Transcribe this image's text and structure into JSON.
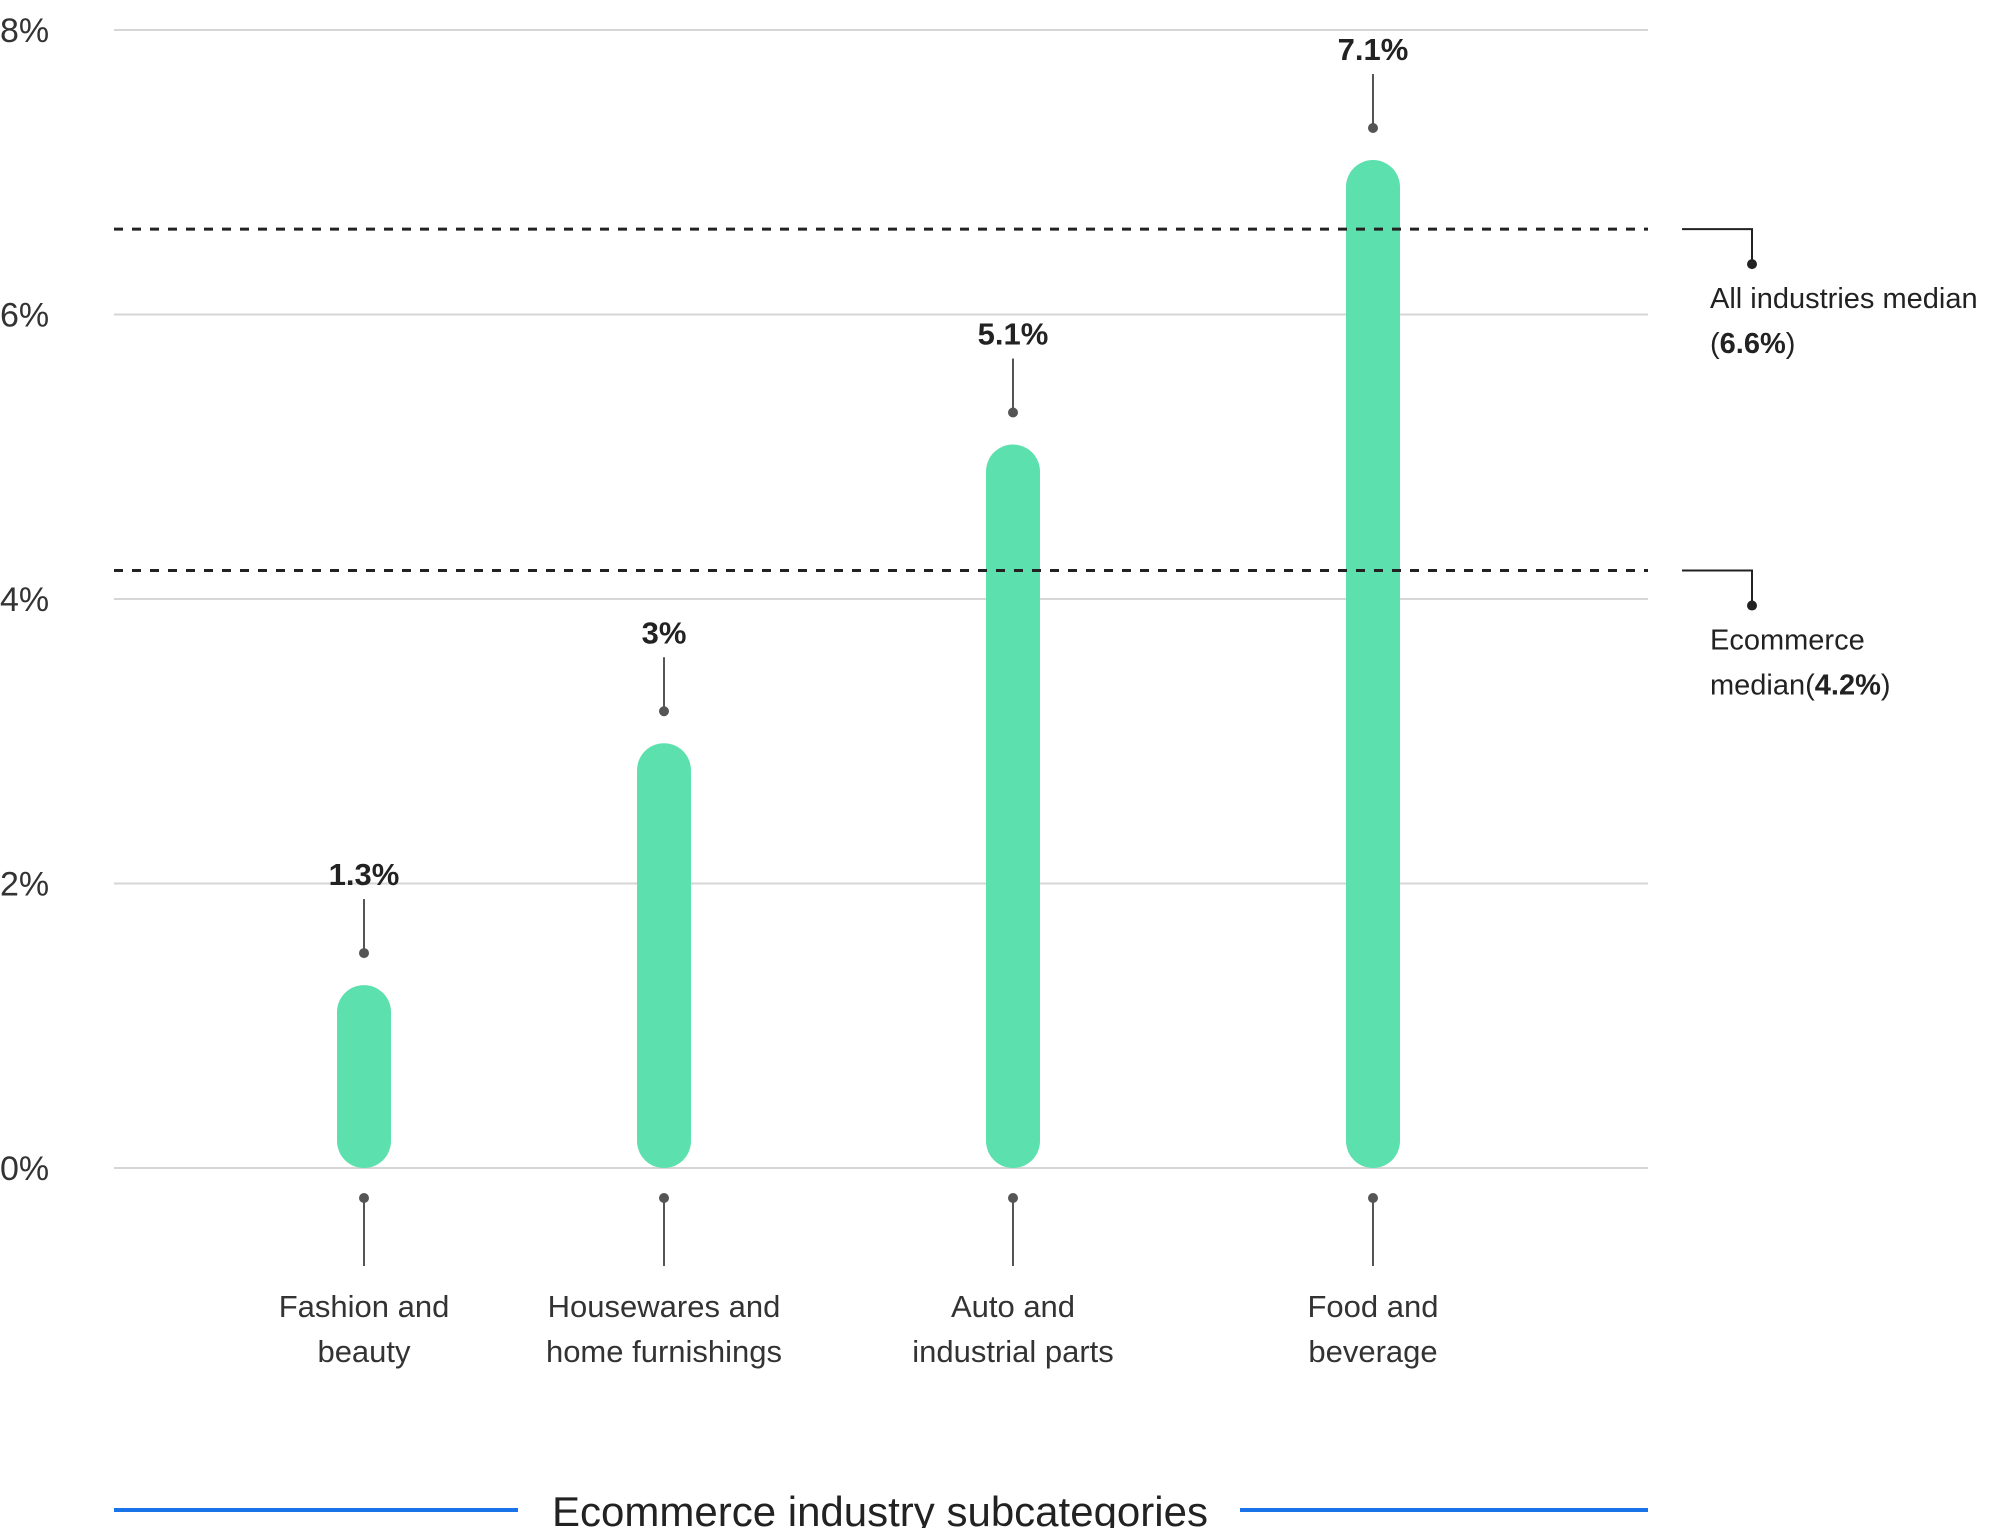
{
  "chart_data": {
    "type": "bar",
    "categories": [
      [
        "Fashion and",
        "beauty"
      ],
      [
        "Housewares and",
        "home furnishings"
      ],
      [
        "Auto and",
        "industrial parts"
      ],
      [
        "Food and",
        "beverage"
      ]
    ],
    "values": [
      1.3,
      3.0,
      5.1,
      7.1
    ],
    "value_labels": [
      "1.3%",
      "3%",
      "5.1%",
      "7.1%"
    ],
    "yticks": [
      "0%",
      "2%",
      "4%",
      "6%",
      "8%"
    ],
    "ylim": [
      0,
      8
    ],
    "grid": true,
    "xlabel": "Ecommerce industry subcategories",
    "reference_lines": [
      {
        "value": 6.6,
        "label_lines": [
          "All industries median",
          "("
        ],
        "value_text": "6.6%",
        "close": ")"
      },
      {
        "value": 4.2,
        "label_lines": [
          "Ecommerce",
          "median("
        ],
        "value_text": "4.2%",
        "close": ")"
      }
    ],
    "colors": {
      "bar": "#5ce0ad",
      "grid": "#d6d6d6",
      "reference": "#222222",
      "leader": "#555555",
      "title_rule": "#1a73e8"
    }
  }
}
